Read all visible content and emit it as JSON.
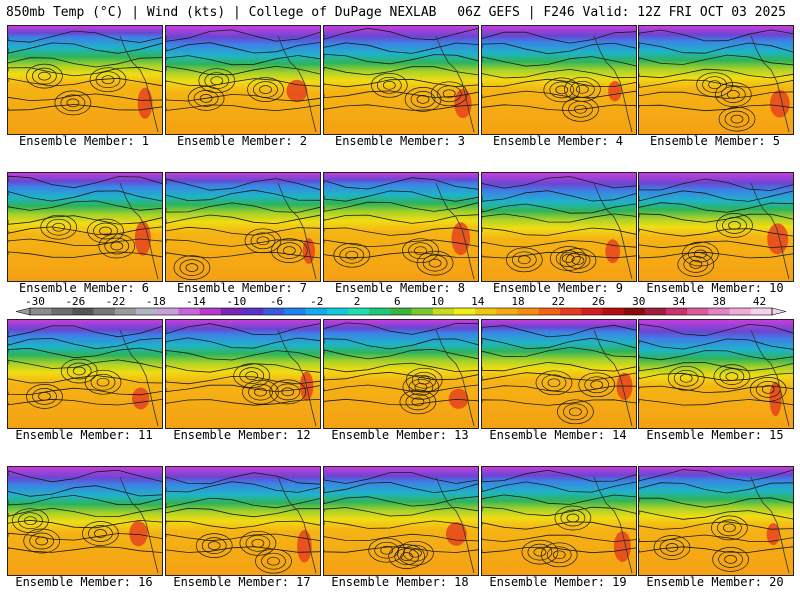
{
  "header": {
    "left": "850mb Temp (°C) | Wind (kts) | College of DuPage NEXLAB",
    "right": "06Z GEFS | F246 Valid: 12Z FRI OCT 03 2025"
  },
  "panel_label_prefix": "Ensemble Member: ",
  "members": [
    1,
    2,
    3,
    4,
    5,
    6,
    7,
    8,
    9,
    10,
    11,
    12,
    13,
    14,
    15,
    16,
    17,
    18,
    19,
    20
  ],
  "colorbar": {
    "ticks": [
      "-30",
      "-26",
      "-22",
      "-18",
      "-14",
      "-10",
      "-6",
      "-2",
      "2",
      "6",
      "10",
      "14",
      "18",
      "22",
      "26",
      "30",
      "34",
      "38",
      "42"
    ],
    "colors": [
      "#8c8c8c",
      "#6e6e6e",
      "#555555",
      "#777777",
      "#9a9a9a",
      "#b4b4c8",
      "#c8a0dc",
      "#c864dc",
      "#b43cc8",
      "#7828b4",
      "#5a32c8",
      "#3c5adc",
      "#1e82f0",
      "#14aaf0",
      "#14c8dc",
      "#1edcb4",
      "#1ec87a",
      "#3cb43c",
      "#78c832",
      "#c8dc1e",
      "#f0f014",
      "#f0c814",
      "#f5aa14",
      "#f58c14",
      "#f06414",
      "#e63c1e",
      "#d21e1e",
      "#b40f14",
      "#8c0a0a",
      "#a01e3c",
      "#c8326e",
      "#dc5aa0",
      "#e682c8",
      "#f0aadc",
      "#f5d2ec"
    ]
  }
}
